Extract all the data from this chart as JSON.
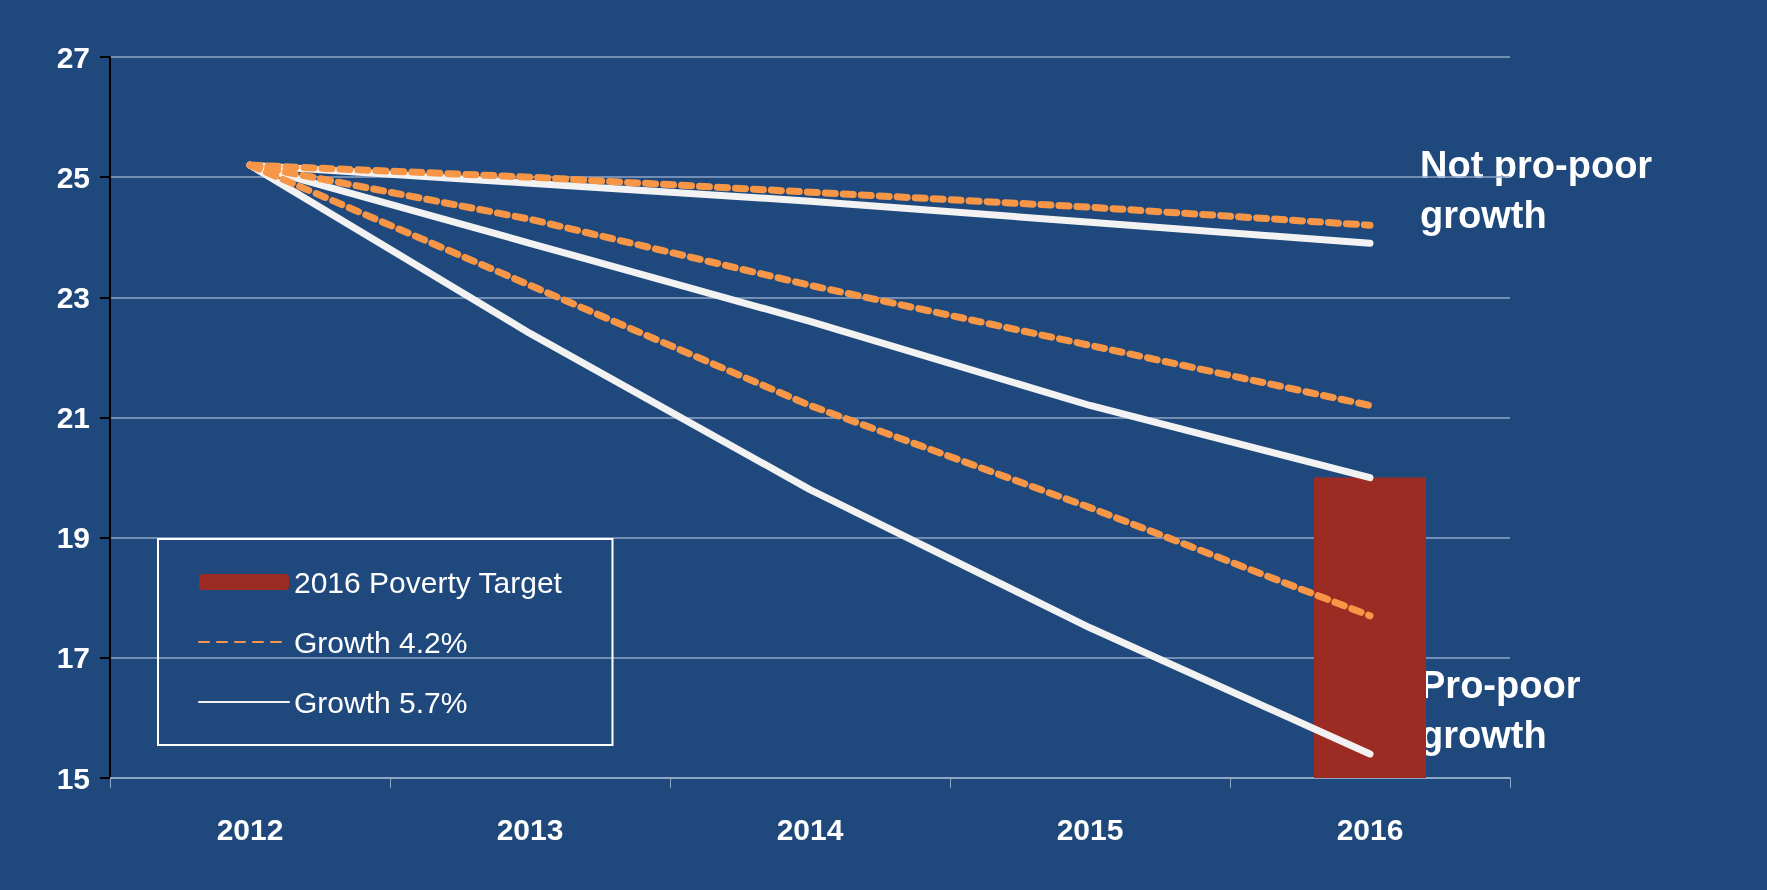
{
  "chart_data": {
    "type": "line",
    "categories": [
      "2012",
      "2013",
      "2014",
      "2015",
      "2016"
    ],
    "ylim": [
      15,
      27
    ],
    "yticks": [
      15,
      17,
      19,
      21,
      23,
      25,
      27
    ],
    "grid": "y",
    "legend": "bottom left",
    "marker": "none",
    "annotations": [
      "Not pro-poor growth",
      "Pro-poor growth"
    ],
    "series": [
      {
        "type": "bar",
        "name": "2016 Poverty Target",
        "color": "#9c2b23",
        "values": [
          null,
          null,
          null,
          null,
          20
        ]
      },
      {
        "color": "#f79646",
        "line_style": "dashed",
        "values": [
          25.2,
          25.0,
          24.75,
          24.5,
          24.2
        ]
      },
      {
        "name": "Growth 4.2%",
        "color": "#f79646",
        "line_style": "dashed",
        "values": [
          25.2,
          24.3,
          23.2,
          22.2,
          21.2
        ]
      },
      {
        "color": "#f79646",
        "line_style": "dashed",
        "values": [
          25.2,
          23.2,
          21.2,
          19.5,
          17.7
        ]
      },
      {
        "color": "#f2f2f2",
        "line_style": "solid",
        "values": [
          25.2,
          24.9,
          24.6,
          24.25,
          23.9
        ]
      },
      {
        "name": "Growth 5.7%",
        "color": "#f2f2f2",
        "line_style": "solid",
        "values": [
          25.2,
          23.9,
          22.6,
          21.2,
          20.0
        ]
      },
      {
        "color": "#f2f2f2",
        "line_style": "solid",
        "values": [
          25.2,
          22.4,
          19.8,
          17.5,
          15.4
        ]
      }
    ]
  }
}
